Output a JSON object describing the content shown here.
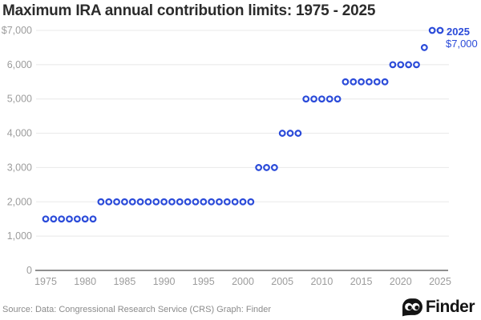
{
  "title": "Maximum IRA annual contribution limits: 1975 - 2025",
  "footer": {
    "source": "Source: Data: Congressional Research Service (CRS) Graph: Finder",
    "brand": "Finder"
  },
  "colors": {
    "accent_blue": "#2b4bd9",
    "title_text": "#2b2b2b",
    "axis_label": "#9c9c9c",
    "gridline": "#e8e8e8",
    "axis_line": "#8f8f8f",
    "source_text": "#8b8b8b",
    "brand_black": "#141414",
    "marker_fill": "#ffffff"
  },
  "chart_data": {
    "type": "scatter",
    "title": "Maximum IRA annual contribution limits: 1975 - 2025",
    "xlabel": "",
    "ylabel": "",
    "xlim": [
      1975,
      2025
    ],
    "ylim": [
      0,
      7000
    ],
    "grid": "horizontal",
    "marker": "open-circle",
    "legend": "none",
    "x": [
      1975,
      1976,
      1977,
      1978,
      1979,
      1980,
      1981,
      1982,
      1983,
      1984,
      1985,
      1986,
      1987,
      1988,
      1989,
      1990,
      1991,
      1992,
      1993,
      1994,
      1995,
      1996,
      1997,
      1998,
      1999,
      2000,
      2001,
      2002,
      2003,
      2004,
      2005,
      2006,
      2007,
      2008,
      2009,
      2010,
      2011,
      2012,
      2013,
      2014,
      2015,
      2016,
      2017,
      2018,
      2019,
      2020,
      2021,
      2022,
      2023,
      2024,
      2025
    ],
    "values": [
      1500,
      1500,
      1500,
      1500,
      1500,
      1500,
      1500,
      2000,
      2000,
      2000,
      2000,
      2000,
      2000,
      2000,
      2000,
      2000,
      2000,
      2000,
      2000,
      2000,
      2000,
      2000,
      2000,
      2000,
      2000,
      2000,
      2000,
      3000,
      3000,
      3000,
      4000,
      4000,
      4000,
      5000,
      5000,
      5000,
      5000,
      5000,
      5500,
      5500,
      5500,
      5500,
      5500,
      5500,
      6000,
      6000,
      6000,
      6000,
      6500,
      7000,
      7000
    ],
    "x_ticks": [
      1975,
      1980,
      1985,
      1990,
      1995,
      2000,
      2005,
      2010,
      2015,
      2020,
      2025
    ],
    "y_ticks": [
      {
        "value": 7000,
        "label": "$7,000"
      },
      {
        "value": 6000,
        "label": "6,000"
      },
      {
        "value": 5000,
        "label": "5,000"
      },
      {
        "value": 4000,
        "label": "4,000"
      },
      {
        "value": 3000,
        "label": "3,000"
      },
      {
        "value": 2000,
        "label": "2,000"
      },
      {
        "value": 1000,
        "label": "1,000"
      },
      {
        "value": 0,
        "label": "0"
      }
    ],
    "annotation": {
      "year": 2025,
      "line1": "2025",
      "line2": "$7,000"
    }
  }
}
